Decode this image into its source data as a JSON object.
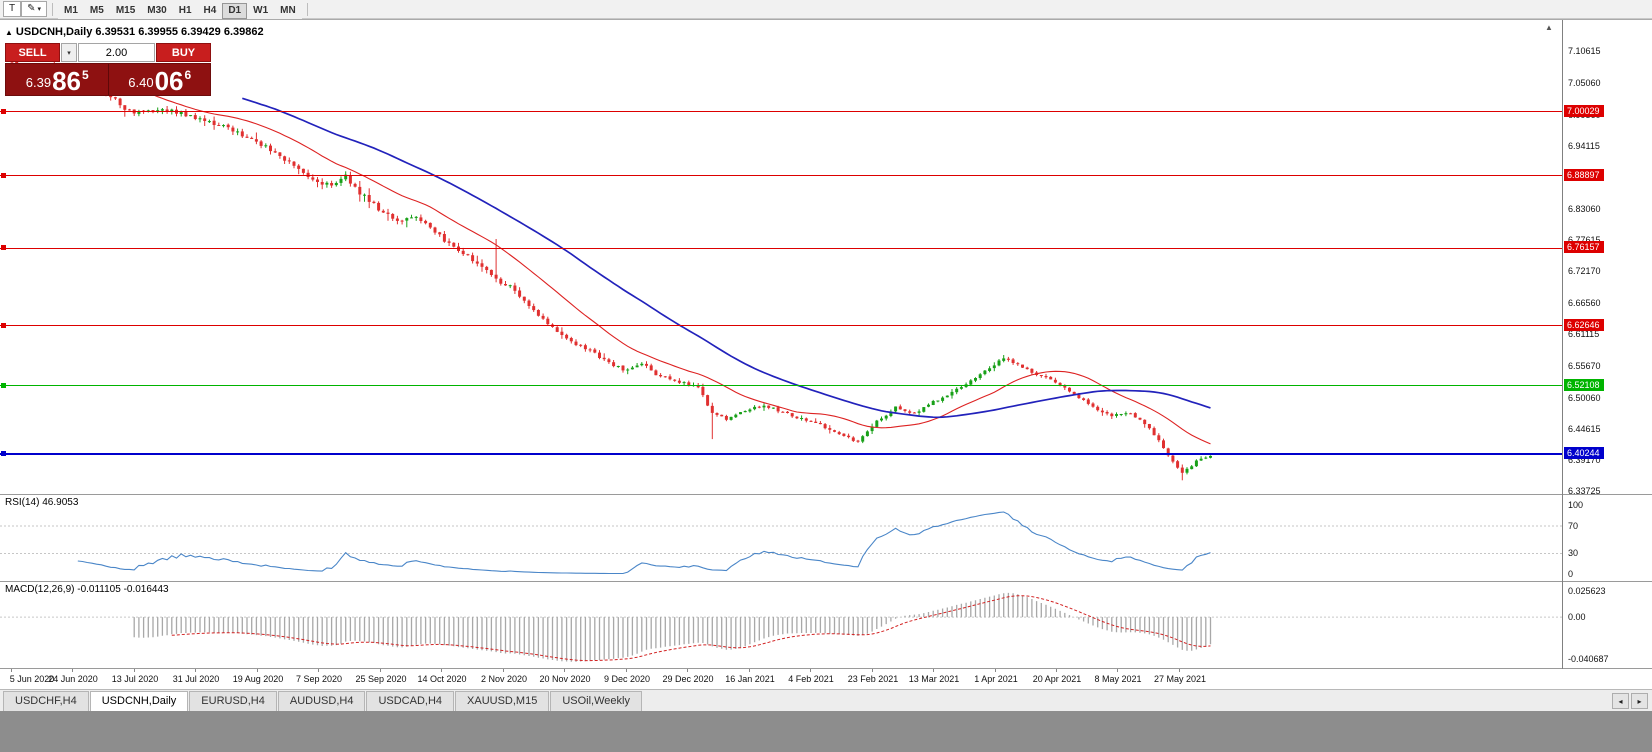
{
  "icons": {
    "caret_down": "▾",
    "triangle_up": "▲",
    "scroll_left": "◂",
    "scroll_right": "▸",
    "pen": "✎"
  },
  "toolbar": {
    "tool_button_label": "T",
    "timeframes": [
      "M1",
      "M5",
      "M15",
      "M30",
      "H1",
      "H4",
      "D1",
      "W1",
      "MN"
    ],
    "active_timeframe": "D1"
  },
  "chart_header": {
    "title": "USDCNH,Daily",
    "quotes": "6.39531 6.39955 6.39429 6.39862"
  },
  "trade_panel": {
    "sell_label": "SELL",
    "buy_label": "BUY",
    "volume_value": "2.00",
    "sell_price": {
      "small": "6.39",
      "big": "86",
      "sup": "5"
    },
    "buy_price": {
      "small": "6.40",
      "big": "06",
      "sup": "6"
    }
  },
  "price_axis": {
    "labels": [
      "7.10615",
      "7.05060",
      "6.99560",
      "6.94115",
      "6.88505",
      "6.83060",
      "6.77615",
      "6.72170",
      "6.66560",
      "6.61115",
      "6.55670",
      "6.50060",
      "6.44615",
      "6.39170",
      "6.33725"
    ]
  },
  "hlines": [
    {
      "label": "7.00029",
      "value": 7.00029,
      "color": "#dd0000",
      "width": 1
    },
    {
      "label": "6.88897",
      "value": 6.88897,
      "color": "#dd0000",
      "width": 1
    },
    {
      "label": "6.76157",
      "value": 6.76157,
      "color": "#dd0000",
      "width": 1
    },
    {
      "label": "6.62646",
      "value": 6.62646,
      "color": "#dd0000",
      "width": 1
    },
    {
      "label": "6.52108",
      "value": 6.52108,
      "color": "#00b400",
      "width": 1
    },
    {
      "label": "6.40244",
      "value": 6.40244,
      "color": "#0000cc",
      "width": 2
    }
  ],
  "rsi_pane": {
    "label": "RSI(14) 46.9053",
    "line_color": "#4a86c8",
    "levels": [
      70,
      30
    ],
    "axis_labels": [
      {
        "label": "100",
        "value": 100
      },
      {
        "label": "70",
        "value": 70
      },
      {
        "label": "30",
        "value": 30
      },
      {
        "label": "0",
        "value": 0
      }
    ]
  },
  "macd_pane": {
    "label": "MACD(12,26,9) -0.011105 -0.016443",
    "histogram_color": "#a8a8a8",
    "signal_color": "#d22222",
    "axis_labels": [
      {
        "label": "0.025623",
        "value": 0.025623
      },
      {
        "label": "0.00",
        "value": 0
      },
      {
        "label": "-0.040687",
        "value": -0.040687
      }
    ]
  },
  "date_axis": {
    "labels": [
      "5 Jun 2020",
      "24 Jun 2020",
      "13 Jul 2020",
      "31 Jul 2020",
      "19 Aug 2020",
      "7 Sep 2020",
      "25 Sep 2020",
      "14 Oct 2020",
      "2 Nov 2020",
      "20 Nov 2020",
      "9 Dec 2020",
      "29 Dec 2020",
      "16 Jan 2021",
      "4 Feb 2021",
      "23 Feb 2021",
      "13 Mar 2021",
      "1 Apr 2021",
      "20 Apr 2021",
      "8 May 2021",
      "27 May 2021"
    ]
  },
  "tabs": {
    "items": [
      {
        "label": "USDCHF,H4",
        "active": false
      },
      {
        "label": "USDCNH,Daily",
        "active": true
      },
      {
        "label": "EURUSD,H4",
        "active": false
      },
      {
        "label": "AUDUSD,H4",
        "active": false
      },
      {
        "label": "USDCAD,H4",
        "active": false
      },
      {
        "label": "XAUUSD,M15",
        "active": false
      },
      {
        "label": "USOil,Weekly",
        "active": false
      }
    ]
  },
  "chart_data": {
    "type": "candlestick",
    "symbol": "USDCNH",
    "timeframe": "Daily",
    "bars": 256,
    "price_range": [
      6.332,
      7.161
    ],
    "last_bar": {
      "open": 6.39531,
      "high": 6.39955,
      "low": 6.39429,
      "close": 6.39862
    },
    "trend_anchors": [
      [
        0,
        7.088
      ],
      [
        4,
        7.072
      ],
      [
        8,
        7.079
      ],
      [
        12,
        7.064
      ],
      [
        16,
        7.053
      ],
      [
        20,
        7.036
      ],
      [
        24,
        7.004
      ],
      [
        28,
        6.997
      ],
      [
        32,
        7.005
      ],
      [
        36,
        6.998
      ],
      [
        40,
        6.989
      ],
      [
        44,
        6.977
      ],
      [
        48,
        6.963
      ],
      [
        52,
        6.949
      ],
      [
        56,
        6.928
      ],
      [
        60,
        6.906
      ],
      [
        64,
        6.883
      ],
      [
        68,
        6.869
      ],
      [
        71,
        6.887
      ],
      [
        74,
        6.859
      ],
      [
        78,
        6.83
      ],
      [
        82,
        6.807
      ],
      [
        86,
        6.816
      ],
      [
        90,
        6.789
      ],
      [
        94,
        6.763
      ],
      [
        98,
        6.743
      ],
      [
        101,
        6.724
      ],
      [
        103,
        6.707
      ],
      [
        106,
        6.695
      ],
      [
        110,
        6.663
      ],
      [
        114,
        6.629
      ],
      [
        118,
        6.603
      ],
      [
        122,
        6.587
      ],
      [
        126,
        6.567
      ],
      [
        130,
        6.549
      ],
      [
        134,
        6.559
      ],
      [
        138,
        6.537
      ],
      [
        142,
        6.529
      ],
      [
        146,
        6.517
      ],
      [
        149,
        6.474
      ],
      [
        152,
        6.463
      ],
      [
        156,
        6.479
      ],
      [
        160,
        6.487
      ],
      [
        164,
        6.475
      ],
      [
        168,
        6.463
      ],
      [
        172,
        6.453
      ],
      [
        176,
        6.437
      ],
      [
        180,
        6.423
      ],
      [
        184,
        6.459
      ],
      [
        188,
        6.483
      ],
      [
        192,
        6.473
      ],
      [
        196,
        6.493
      ],
      [
        200,
        6.509
      ],
      [
        204,
        6.529
      ],
      [
        208,
        6.553
      ],
      [
        211,
        6.569
      ],
      [
        214,
        6.557
      ],
      [
        218,
        6.541
      ],
      [
        222,
        6.529
      ],
      [
        226,
        6.507
      ],
      [
        230,
        6.483
      ],
      [
        234,
        6.469
      ],
      [
        238,
        6.473
      ],
      [
        242,
        6.449
      ],
      [
        246,
        6.399
      ],
      [
        249,
        6.369
      ],
      [
        252,
        6.389
      ],
      [
        255,
        6.3986
      ]
    ],
    "spikes": [
      {
        "i": 103,
        "high": 6.778
      },
      {
        "i": 149,
        "low": 6.428
      },
      {
        "i": 249,
        "low": 6.356
      }
    ],
    "moving_averages": [
      {
        "period": 20,
        "color": "#dd2222"
      },
      {
        "period": 50,
        "color": "#2222bb"
      }
    ],
    "colors": {
      "up": "#18a018",
      "down": "#e03030"
    }
  }
}
